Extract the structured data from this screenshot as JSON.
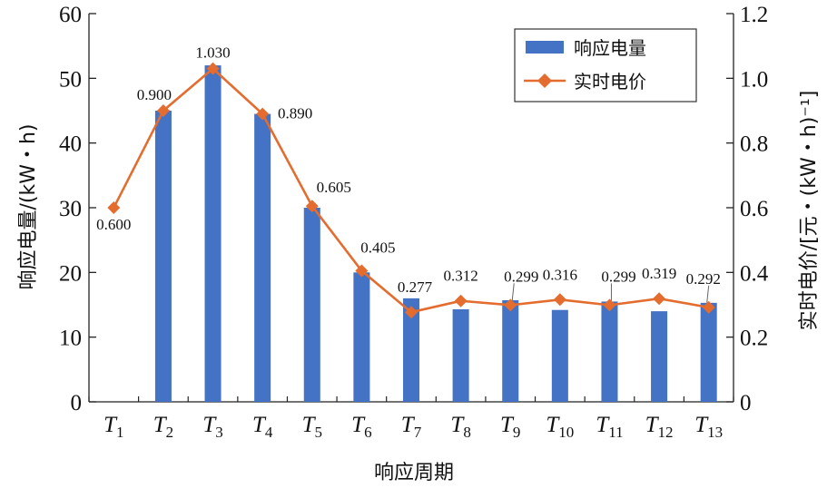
{
  "chart_data": {
    "type": "bar+line",
    "categories": [
      "T1",
      "T2",
      "T3",
      "T4",
      "T5",
      "T6",
      "T7",
      "T8",
      "T9",
      "T10",
      "T11",
      "T12",
      "T13"
    ],
    "category_display": [
      {
        "base": "T",
        "sub": "1"
      },
      {
        "base": "T",
        "sub": "2"
      },
      {
        "base": "T",
        "sub": "3"
      },
      {
        "base": "T",
        "sub": "4"
      },
      {
        "base": "T",
        "sub": "5"
      },
      {
        "base": "T",
        "sub": "6"
      },
      {
        "base": "T",
        "sub": "7"
      },
      {
        "base": "T",
        "sub": "8"
      },
      {
        "base": "T",
        "sub": "9"
      },
      {
        "base": "T",
        "sub": "10"
      },
      {
        "base": "T",
        "sub": "11"
      },
      {
        "base": "T",
        "sub": "12"
      },
      {
        "base": "T",
        "sub": "13"
      }
    ],
    "series": [
      {
        "name": "响应电量",
        "type": "bar",
        "axis": "left",
        "color": "#4472C4",
        "values": [
          0,
          45,
          52,
          44.5,
          30,
          20,
          16,
          14.3,
          15.7,
          14.2,
          15.5,
          14,
          15.3
        ]
      },
      {
        "name": "实时电价",
        "type": "line",
        "axis": "right",
        "color": "#E46C2E",
        "marker": "diamond",
        "values": [
          0.6,
          0.9,
          1.03,
          0.89,
          0.605,
          0.405,
          0.277,
          0.312,
          0.299,
          0.316,
          0.299,
          0.319,
          0.292
        ],
        "labels": [
          "0.600",
          "0.900",
          "1.030",
          "0.890",
          "0.605",
          "0.405",
          "0.277",
          "0.312",
          "0.299",
          "0.316",
          "0.299",
          "0.319",
          "0.292"
        ]
      }
    ],
    "xlabel": "响应周期",
    "ylabel_left": "响应电量/(kW・h)",
    "ylabel_right": "实时电价/[元・(kW・h)⁻¹]",
    "ylim_left": [
      0,
      60
    ],
    "ylim_right": [
      0,
      1.2
    ],
    "yticks_left": [
      "0",
      "10",
      "20",
      "30",
      "40",
      "50",
      "60"
    ],
    "yticks_right": [
      "0",
      "0.2",
      "0.4",
      "0.6",
      "0.8",
      "1.0",
      "1.2"
    ],
    "grid": false,
    "legend": "top-right"
  }
}
